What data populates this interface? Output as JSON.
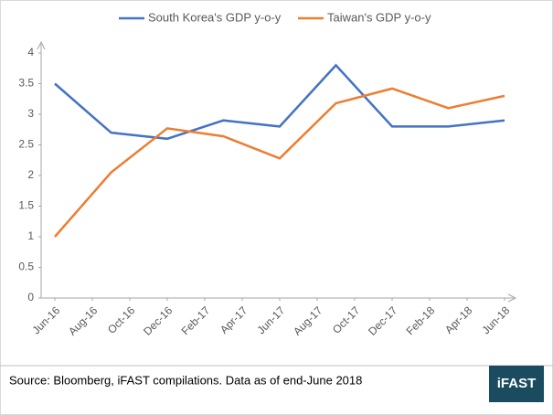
{
  "chart_data": {
    "type": "line",
    "x": [
      0,
      3,
      6,
      9,
      12,
      15,
      18,
      21,
      24
    ],
    "xlim": [
      0,
      24
    ],
    "xticks": [
      {
        "value": 0,
        "label": "Jun-16"
      },
      {
        "value": 2,
        "label": "Aug-16"
      },
      {
        "value": 4,
        "label": "Oct-16"
      },
      {
        "value": 6,
        "label": "Dec-16"
      },
      {
        "value": 8,
        "label": "Feb-17"
      },
      {
        "value": 10,
        "label": "Apr-17"
      },
      {
        "value": 12,
        "label": "Jun-17"
      },
      {
        "value": 14,
        "label": "Aug-17"
      },
      {
        "value": 16,
        "label": "Oct-17"
      },
      {
        "value": 18,
        "label": "Dec-17"
      },
      {
        "value": 20,
        "label": "Feb-18"
      },
      {
        "value": 22,
        "label": "Apr-18"
      },
      {
        "value": 24,
        "label": "Jun-18"
      }
    ],
    "ylim": [
      0,
      4
    ],
    "yticks": [
      0,
      0.5,
      1,
      1.5,
      2,
      2.5,
      3,
      3.5,
      4
    ],
    "series": [
      {
        "name": "South Korea's GDP y-o-y",
        "color": "#4472c4",
        "values": [
          3.5,
          2.7,
          2.6,
          2.9,
          2.8,
          3.8,
          2.8,
          2.8,
          2.9
        ]
      },
      {
        "name": "Taiwan's GDP y-o-y",
        "color": "#ed7d31",
        "values": [
          1.0,
          2.05,
          2.77,
          2.64,
          2.28,
          3.18,
          3.42,
          3.1,
          3.3
        ]
      }
    ],
    "source": "Source: Bloomberg, iFAST compilations. Data as of end-June 2018",
    "logo": "iFAST"
  }
}
